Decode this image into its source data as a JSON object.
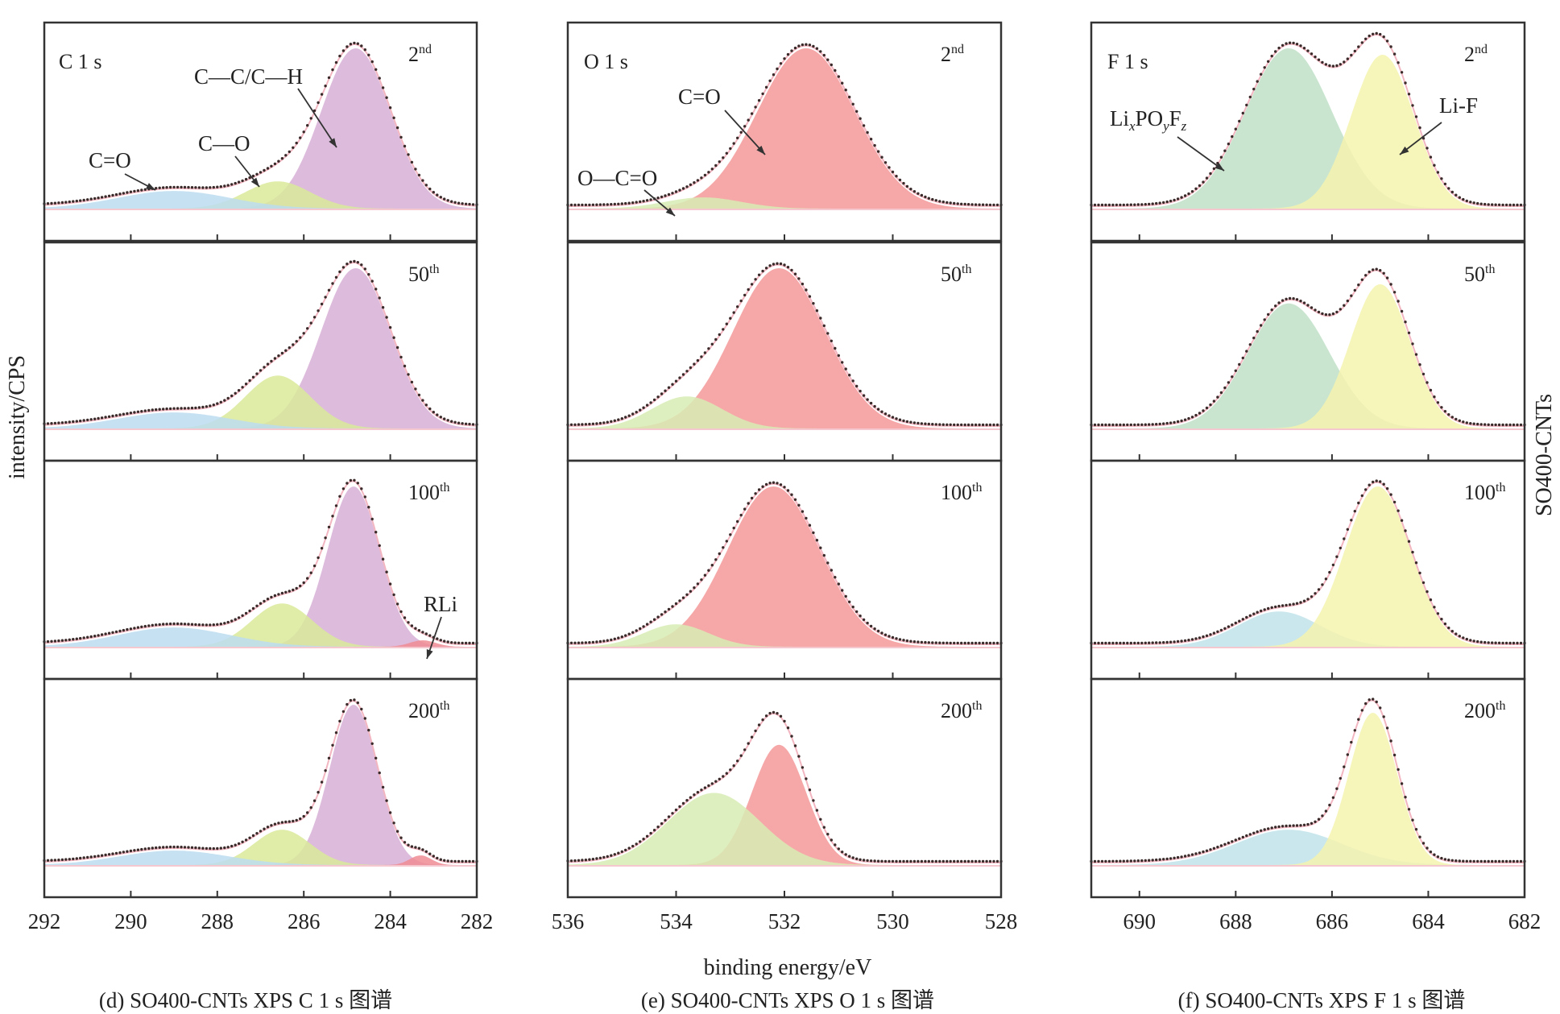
{
  "figure": {
    "y_axis_label": "intensity/CPS",
    "x_axis_label": "binding energy/eV",
    "side_label": "SO400-CNTs",
    "cycle_labels": [
      {
        "num": "2",
        "sup": "nd"
      },
      {
        "num": "50",
        "sup": "th"
      },
      {
        "num": "100",
        "sup": "th"
      },
      {
        "num": "200",
        "sup": "th"
      }
    ]
  },
  "colors": {
    "purple": "#d7afd6",
    "green": "#d9ea9a",
    "blue": "#bcdcf0",
    "red_rli": "#f08c94",
    "salmon": "#f4999a",
    "lightgreen": "#d8ecb4",
    "mint": "#bfe0c8",
    "yellow": "#f5f3ae",
    "cyan": "#bfe3ea",
    "envelope": "#f2b6c1",
    "dots": "#3a2a2a"
  },
  "chart_data": [
    {
      "type": "area",
      "id": "C1s",
      "corner_label": "C  1 s",
      "caption": "(d) SO400-CNTs XPS C 1 s 图谱",
      "xlim": [
        292,
        282
      ],
      "xticks": [
        292,
        290,
        288,
        286,
        284,
        282
      ],
      "annotations": [
        "C—C/C—H",
        "C—O",
        "C=O",
        "RLi"
      ],
      "series": [
        {
          "name": "C—C/C—H",
          "color_key": "purple"
        },
        {
          "name": "C—O",
          "color_key": "green"
        },
        {
          "name": "C=O",
          "color_key": "blue"
        },
        {
          "name": "RLi",
          "color_key": "red_rli"
        }
      ],
      "panels": [
        {
          "peaks": [
            [
              284.8,
              1.0,
              0.8
            ],
            [
              286.6,
              0.17,
              0.75
            ],
            [
              289.0,
              0.11,
              1.3
            ]
          ],
          "baseline": 0.0
        },
        {
          "peaks": [
            [
              284.8,
              1.0,
              0.8
            ],
            [
              286.6,
              0.33,
              0.75
            ],
            [
              289.0,
              0.1,
              1.3
            ]
          ],
          "baseline": 0.0
        },
        {
          "peaks": [
            [
              284.85,
              1.0,
              0.6
            ],
            [
              286.5,
              0.27,
              0.7
            ],
            [
              289.0,
              0.12,
              1.3
            ],
            [
              283.25,
              0.04,
              0.3
            ]
          ],
          "baseline": 0.0
        },
        {
          "peaks": [
            [
              284.85,
              1.0,
              0.55
            ],
            [
              286.5,
              0.22,
              0.65
            ],
            [
              289.0,
              0.09,
              1.25
            ],
            [
              283.3,
              0.06,
              0.25
            ]
          ],
          "baseline": 0.0
        }
      ]
    },
    {
      "type": "area",
      "id": "O1s",
      "corner_label": "O 1 s",
      "caption": "(e) SO400-CNTs XPS O 1 s 图谱",
      "xlim": [
        536,
        528
      ],
      "xticks": [
        536,
        534,
        532,
        530,
        528
      ],
      "annotations": [
        "C=O",
        "O—C=O"
      ],
      "series": [
        {
          "name": "C=O",
          "color_key": "salmon"
        },
        {
          "name": "O—C=O",
          "color_key": "lightgreen"
        }
      ],
      "panels": [
        {
          "peaks": [
            [
              531.6,
              1.0,
              0.9
            ],
            [
              533.5,
              0.07,
              0.7
            ]
          ],
          "baseline": 0.0
        },
        {
          "peaks": [
            [
              532.1,
              1.0,
              0.85
            ],
            [
              533.8,
              0.2,
              0.65
            ]
          ],
          "baseline": 0.0
        },
        {
          "peaks": [
            [
              532.2,
              1.0,
              0.85
            ],
            [
              534.0,
              0.14,
              0.6
            ]
          ],
          "baseline": 0.0
        },
        {
          "peaks": [
            [
              532.1,
              0.75,
              0.5
            ],
            [
              533.3,
              0.45,
              0.85
            ]
          ],
          "baseline": 0.0
        }
      ]
    },
    {
      "type": "area",
      "id": "F1s",
      "corner_label": "F 1 s",
      "caption": "(f) SO400-CNTs XPS F 1 s 图谱",
      "xlim": [
        691,
        682
      ],
      "xticks": [
        690,
        688,
        686,
        684,
        682
      ],
      "annotations": [
        "Li-F"
      ],
      "series": [
        {
          "name": "LixPOyFz",
          "color_key": "mint"
        },
        {
          "name": "Li-F",
          "color_key": "yellow"
        }
      ],
      "secondary_series_colors": [
        "cyan",
        "yellow"
      ],
      "panels": [
        {
          "peaks": [
            [
              686.9,
              1.0,
              0.9
            ],
            [
              684.95,
              0.96,
              0.65
            ]
          ],
          "baseline": 0.0
        },
        {
          "peaks": [
            [
              686.9,
              0.78,
              0.85
            ],
            [
              685.0,
              0.9,
              0.62
            ]
          ],
          "baseline": 0.0
        },
        {
          "peaks": [
            [
              687.1,
              0.22,
              0.85
            ],
            [
              685.05,
              1.0,
              0.68
            ]
          ],
          "baseline": 0.0
        },
        {
          "peaks": [
            [
              686.9,
              0.22,
              1.1
            ],
            [
              685.15,
              0.95,
              0.5
            ]
          ],
          "baseline": 0.0
        }
      ]
    }
  ],
  "label_lixpoyfz": {
    "a": "Li",
    "b": "x",
    "c": "PO",
    "d": "y",
    "e": "F",
    "f": "z"
  }
}
